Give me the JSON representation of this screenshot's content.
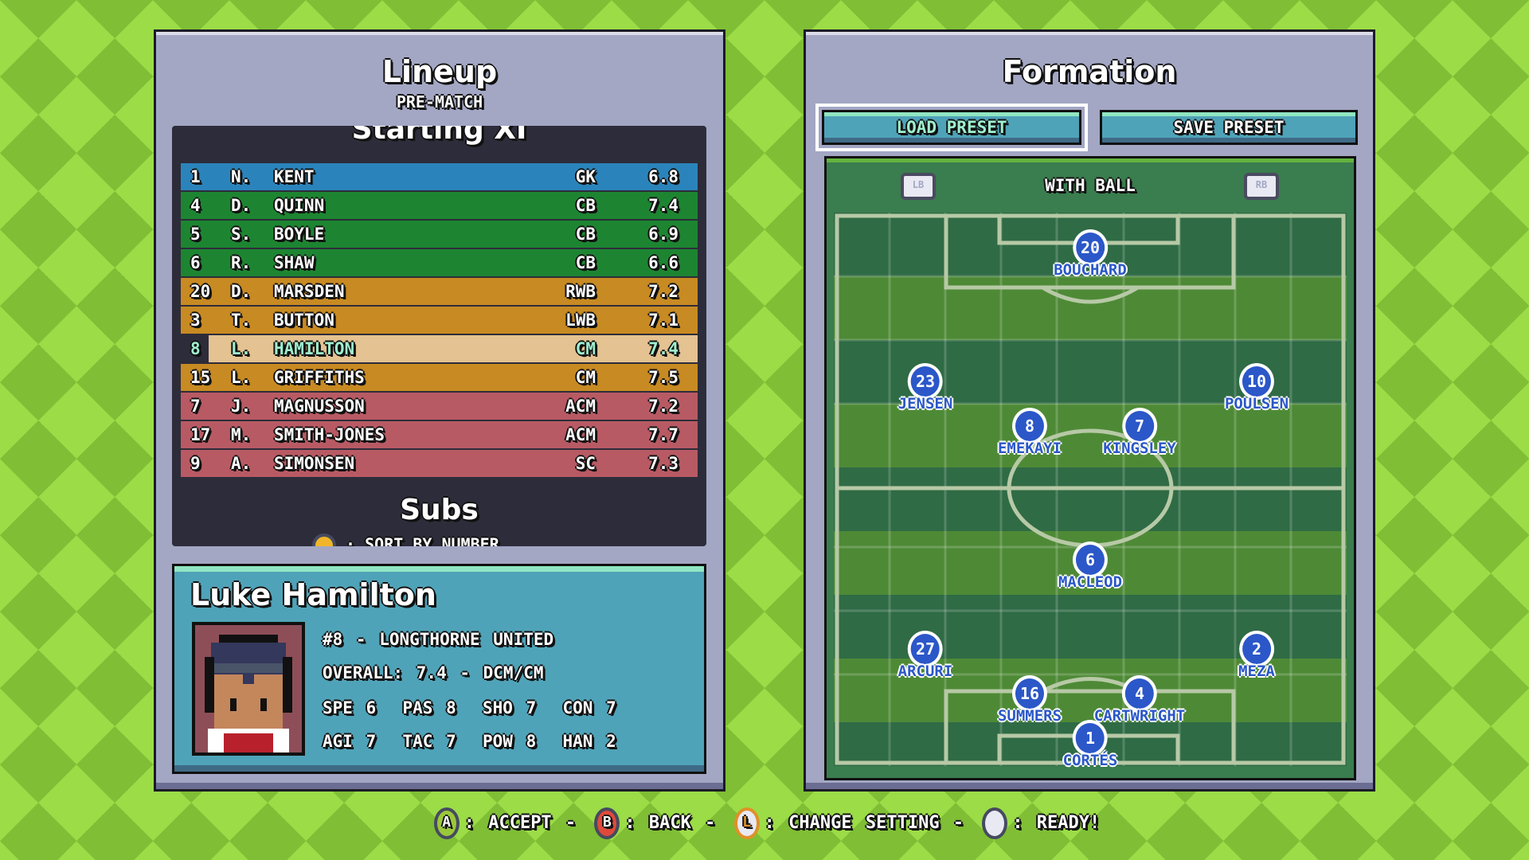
{
  "lineup": {
    "title": "Lineup",
    "subtitle": "PRE-MATCH",
    "section": "Starting XI",
    "subs_title": "Subs",
    "sort_hint": "· SORT BY NUMBER",
    "players": [
      {
        "num": "1",
        "init": "N.",
        "name": "KENT",
        "pos": "GK",
        "rating": "6.8",
        "color": "#2a84bb"
      },
      {
        "num": "4",
        "init": "D.",
        "name": "QUINN",
        "pos": "CB",
        "rating": "7.4",
        "color": "#1d8531"
      },
      {
        "num": "5",
        "init": "S.",
        "name": "BOYLE",
        "pos": "CB",
        "rating": "6.9",
        "color": "#1d8531"
      },
      {
        "num": "6",
        "init": "R.",
        "name": "SHAW",
        "pos": "CB",
        "rating": "6.6",
        "color": "#1d8531"
      },
      {
        "num": "20",
        "init": "D.",
        "name": "MARSDEN",
        "pos": "RWB",
        "rating": "7.2",
        "color": "#c88a22"
      },
      {
        "num": "3",
        "init": "T.",
        "name": "BUTTON",
        "pos": "LWB",
        "rating": "7.1",
        "color": "#c88a22"
      },
      {
        "num": "8",
        "init": "L.",
        "name": "HAMILTON",
        "pos": "CM",
        "rating": "7.4",
        "color": "#e4c291",
        "selected": true
      },
      {
        "num": "15",
        "init": "L.",
        "name": "GRIFFITHS",
        "pos": "CM",
        "rating": "7.5",
        "color": "#c88a22"
      },
      {
        "num": "7",
        "init": "J.",
        "name": "MAGNUSSON",
        "pos": "ACM",
        "rating": "7.2",
        "color": "#b85a64"
      },
      {
        "num": "17",
        "init": "M.",
        "name": "SMITH-JONES",
        "pos": "ACM",
        "rating": "7.7",
        "color": "#b85a64"
      },
      {
        "num": "9",
        "init": "A.",
        "name": "SIMONSEN",
        "pos": "SC",
        "rating": "7.3",
        "color": "#b85a64"
      }
    ]
  },
  "card": {
    "name": "Luke Hamilton",
    "line1": "#8 - LONGTHORNE UNITED",
    "line2": "OVERALL: 7.4 - DCM/CM",
    "line3": "SPE 6  PAS 8  SHO 7  CON 7",
    "line4": "AGI 7  TAC 7  POW 8  HAN 2"
  },
  "formation": {
    "title": "Formation",
    "load_preset": "LOAD PRESET",
    "save_preset": "SAVE PRESET",
    "mode": "WITH BALL",
    "lb": "LB",
    "rb": "RB",
    "players": [
      {
        "num": "20",
        "name": "BOUCHARD"
      },
      {
        "num": "23",
        "name": "JENSEN"
      },
      {
        "num": "10",
        "name": "POULSEN"
      },
      {
        "num": "8",
        "name": "EMEKAYI"
      },
      {
        "num": "7",
        "name": "KINGSLEY"
      },
      {
        "num": "6",
        "name": "MACLEOD"
      },
      {
        "num": "27",
        "name": "ARCURI"
      },
      {
        "num": "2",
        "name": "MEZA"
      },
      {
        "num": "16",
        "name": "SUMMERS"
      },
      {
        "num": "4",
        "name": "CARTWRIGHT"
      },
      {
        "num": "1",
        "name": "CORTÉS"
      }
    ]
  },
  "footer": {
    "a_label": "A",
    "accept": ": ACCEPT -",
    "b_label": "B",
    "back": ": BACK -",
    "l_label": "L",
    "change": ": CHANGE SETTING -",
    "ready": ": READY!"
  }
}
